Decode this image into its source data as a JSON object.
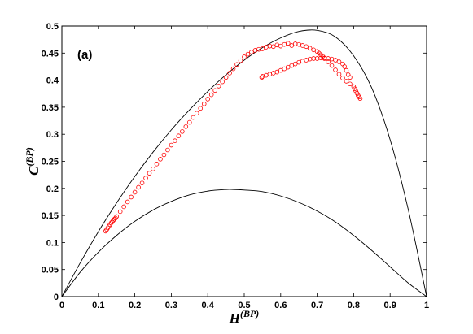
{
  "chart_data": {
    "type": "scatter",
    "panel_label": "(a)",
    "xlabel": {
      "base": "H",
      "superscript": "(BP)"
    },
    "ylabel": {
      "base": "C",
      "superscript": "(BP)"
    },
    "xlim": [
      0,
      1
    ],
    "ylim": [
      0,
      0.5
    ],
    "xticks": [
      "0",
      "0.1",
      "0.2",
      "0.3",
      "0.4",
      "0.5",
      "0.6",
      "0.7",
      "0.8",
      "0.9",
      "1"
    ],
    "yticks": [
      "0",
      "0.05",
      "0.1",
      "0.15",
      "0.2",
      "0.25",
      "0.3",
      "0.35",
      "0.4",
      "0.45",
      "0.5"
    ],
    "grid": false,
    "marker": "open-circle",
    "colors": {
      "points": "#ff0000",
      "bounds": "#000000"
    },
    "boundary_curves": [
      {
        "role": "upper",
        "x": [
          0,
          0.05,
          0.1,
          0.15,
          0.2,
          0.25,
          0.3,
          0.35,
          0.4,
          0.45,
          0.5,
          0.55,
          0.6,
          0.65,
          0.7,
          0.75,
          0.8,
          0.85,
          0.9,
          0.95,
          1
        ],
        "y": [
          0,
          0.062,
          0.12,
          0.173,
          0.222,
          0.267,
          0.308,
          0.345,
          0.379,
          0.41,
          0.437,
          0.46,
          0.478,
          0.49,
          0.492,
          0.48,
          0.445,
          0.385,
          0.29,
          0.16,
          0
        ]
      },
      {
        "role": "lower",
        "x": [
          0,
          0.05,
          0.1,
          0.15,
          0.2,
          0.25,
          0.3,
          0.35,
          0.4,
          0.45,
          0.47,
          0.5,
          0.55,
          0.6,
          0.65,
          0.7,
          0.75,
          0.8,
          0.85,
          0.9,
          0.95,
          1
        ],
        "y": [
          0,
          0.045,
          0.082,
          0.113,
          0.139,
          0.16,
          0.176,
          0.188,
          0.195,
          0.198,
          0.198,
          0.197,
          0.194,
          0.186,
          0.174,
          0.158,
          0.138,
          0.113,
          0.085,
          0.055,
          0.025,
          0
        ]
      }
    ],
    "series": [
      {
        "x": [
          0.12,
          0.123,
          0.126,
          0.129,
          0.132,
          0.135,
          0.138,
          0.141,
          0.144,
          0.147,
          0.15,
          0.16,
          0.17,
          0.18,
          0.19,
          0.2,
          0.21,
          0.22,
          0.23,
          0.24,
          0.25,
          0.26,
          0.27,
          0.28,
          0.29,
          0.3,
          0.31,
          0.32,
          0.33,
          0.34,
          0.35,
          0.36,
          0.37,
          0.38,
          0.39,
          0.4,
          0.41,
          0.42,
          0.43,
          0.44,
          0.45,
          0.46,
          0.47,
          0.48,
          0.49,
          0.5,
          0.51,
          0.52,
          0.53,
          0.54,
          0.55,
          0.56,
          0.57,
          0.58,
          0.59,
          0.6,
          0.61,
          0.62,
          0.63,
          0.64,
          0.65,
          0.66,
          0.67,
          0.68,
          0.69,
          0.7,
          0.705,
          0.71,
          0.715,
          0.72,
          0.73,
          0.74,
          0.75,
          0.76,
          0.77,
          0.78,
          0.79,
          0.8,
          0.803,
          0.806,
          0.809,
          0.812,
          0.815,
          0.818,
          0.79,
          0.785,
          0.78,
          0.775,
          0.77,
          0.76,
          0.75,
          0.74,
          0.73,
          0.72,
          0.71,
          0.7,
          0.69,
          0.68,
          0.67,
          0.66,
          0.65,
          0.64,
          0.63,
          0.62,
          0.61,
          0.6,
          0.59,
          0.58,
          0.57,
          0.56,
          0.55,
          0.548
        ],
        "y": [
          0.121,
          0.124,
          0.127,
          0.13,
          0.133,
          0.136,
          0.138,
          0.141,
          0.143,
          0.145,
          0.148,
          0.157,
          0.166,
          0.175,
          0.184,
          0.193,
          0.202,
          0.21,
          0.219,
          0.228,
          0.236,
          0.245,
          0.254,
          0.262,
          0.271,
          0.28,
          0.288,
          0.297,
          0.305,
          0.314,
          0.322,
          0.331,
          0.339,
          0.348,
          0.356,
          0.365,
          0.373,
          0.381,
          0.389,
          0.397,
          0.405,
          0.413,
          0.421,
          0.429,
          0.436,
          0.443,
          0.448,
          0.452,
          0.455,
          0.457,
          0.458,
          0.461,
          0.463,
          0.462,
          0.465,
          0.463,
          0.466,
          0.468,
          0.464,
          0.467,
          0.466,
          0.464,
          0.462,
          0.459,
          0.456,
          0.453,
          0.45,
          0.447,
          0.444,
          0.441,
          0.434,
          0.427,
          0.419,
          0.411,
          0.404,
          0.398,
          0.393,
          0.388,
          0.384,
          0.38,
          0.376,
          0.372,
          0.369,
          0.366,
          0.405,
          0.41,
          0.418,
          0.425,
          0.43,
          0.434,
          0.437,
          0.439,
          0.44,
          0.44,
          0.441,
          0.44,
          0.44,
          0.439,
          0.437,
          0.435,
          0.433,
          0.43,
          0.427,
          0.424,
          0.421,
          0.418,
          0.415,
          0.413,
          0.411,
          0.409,
          0.407,
          0.405
        ]
      }
    ]
  }
}
